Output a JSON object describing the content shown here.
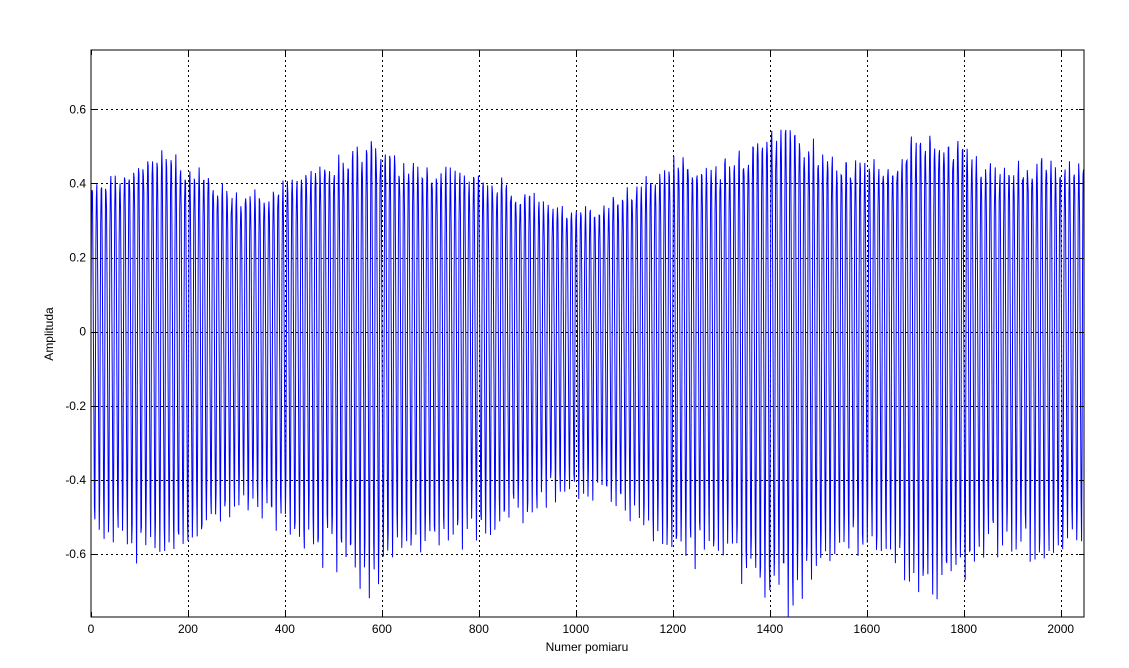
{
  "chart_data": {
    "type": "line",
    "title": "",
    "xlabel": "Numer pomiaru",
    "ylabel": "Amplituda",
    "xlim": [
      0,
      2048
    ],
    "ylim": [
      -0.77,
      0.76
    ],
    "grid": true,
    "xticks": [
      0,
      200,
      400,
      600,
      800,
      1000,
      1200,
      1400,
      1600,
      1800,
      2000
    ],
    "yticks": [
      -0.6,
      -0.4,
      -0.2,
      0,
      0.2,
      0.4,
      0.6
    ],
    "xtick_labels": [
      "0",
      "200",
      "400",
      "600",
      "800",
      "1000",
      "1200",
      "1400",
      "1600",
      "1800",
      "2000"
    ],
    "ytick_labels": [
      "-0.6",
      "-0.4",
      "-0.2",
      "0",
      "0.2",
      "0.4",
      "0.6"
    ],
    "series": [
      {
        "color": "#0000ff",
        "n_points": 2048,
        "carrier_period": 9.6,
        "envelope": {
          "x": [
            0,
            60,
            100,
            150,
            200,
            250,
            300,
            350,
            400,
            450,
            500,
            550,
            580,
            600,
            650,
            700,
            750,
            800,
            850,
            900,
            950,
            1000,
            1050,
            1100,
            1150,
            1200,
            1250,
            1300,
            1350,
            1400,
            1450,
            1500,
            1550,
            1600,
            1650,
            1700,
            1750,
            1800,
            1850,
            1900,
            1950,
            2000,
            2048
          ],
          "y": [
            0.52,
            0.58,
            0.6,
            0.64,
            0.6,
            0.55,
            0.49,
            0.5,
            0.54,
            0.6,
            0.62,
            0.66,
            0.7,
            0.65,
            0.6,
            0.6,
            0.58,
            0.56,
            0.54,
            0.5,
            0.46,
            0.44,
            0.45,
            0.5,
            0.56,
            0.62,
            0.62,
            0.6,
            0.66,
            0.72,
            0.74,
            0.66,
            0.62,
            0.6,
            0.62,
            0.7,
            0.72,
            0.66,
            0.6,
            0.6,
            0.62,
            0.61,
            0.6
          ]
        },
        "color_name": "blue"
      }
    ]
  }
}
